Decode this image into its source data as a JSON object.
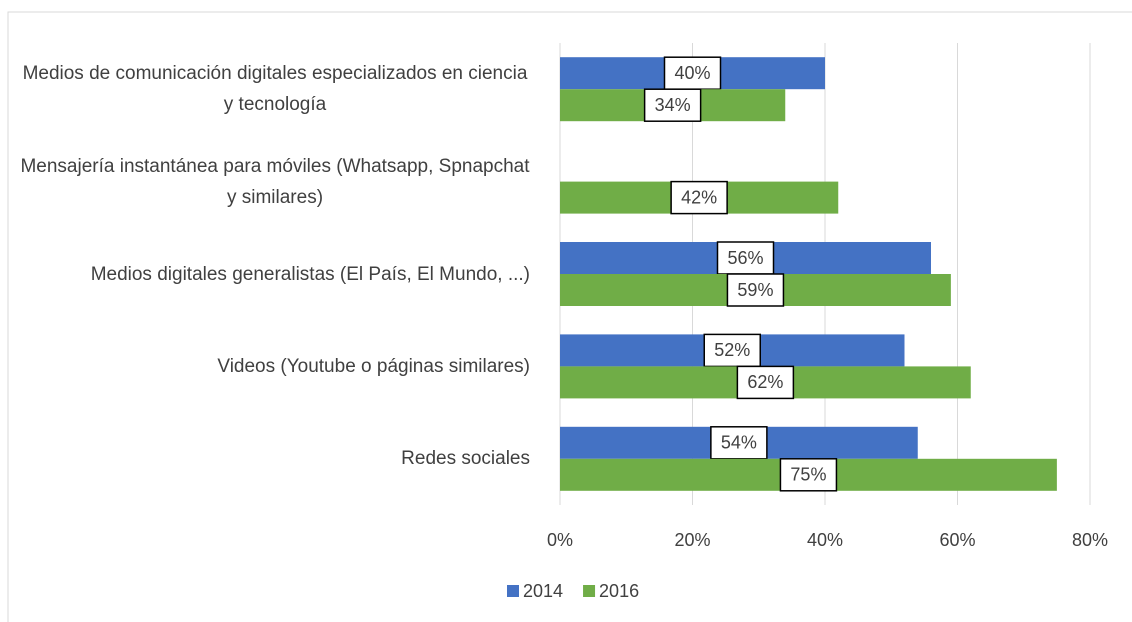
{
  "chart_data": {
    "type": "bar",
    "orientation": "horizontal",
    "categories": [
      "Medios de comunicación digitales especializados en ciencia y tecnología",
      "Mensajería instantánea para móviles (Whatsapp, Spnapchat y similares)",
      "Medios digitales generalistas (El País, El Mundo, ...)",
      "Videos (Youtube o páginas similares)",
      "Redes sociales"
    ],
    "series": [
      {
        "name": "2014",
        "color": "#4472c4",
        "values": [
          40,
          null,
          56,
          52,
          54
        ],
        "value_labels": [
          "40%",
          null,
          "56%",
          "52%",
          "54%"
        ]
      },
      {
        "name": "2016",
        "color": "#70ad47",
        "values": [
          34,
          42,
          59,
          62,
          75
        ],
        "value_labels": [
          "34%",
          "42%",
          "59%",
          "62%",
          "75%"
        ]
      }
    ],
    "xlim": [
      0,
      80
    ],
    "xticks": [
      {
        "value": 0,
        "label": "0%"
      },
      {
        "value": 20,
        "label": "20%"
      },
      {
        "value": 40,
        "label": "40%"
      },
      {
        "value": 60,
        "label": "60%"
      },
      {
        "value": 80,
        "label": "80%"
      }
    ],
    "grid": true,
    "legend": "bottom"
  }
}
